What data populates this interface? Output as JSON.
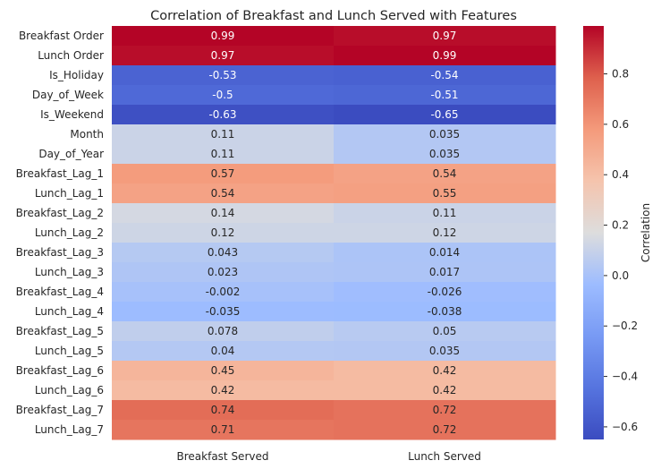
{
  "chart_data": {
    "type": "heatmap",
    "title": "Correlation of Breakfast and Lunch Served with Features",
    "columns": [
      "Breakfast Served",
      "Lunch Served"
    ],
    "rows": [
      "Breakfast Order",
      "Lunch Order",
      "Is_Holiday",
      "Day_of_Week",
      "Is_Weekend",
      "Month",
      "Day_of_Year",
      "Breakfast_Lag_1",
      "Lunch_Lag_1",
      "Breakfast_Lag_2",
      "Lunch_Lag_2",
      "Breakfast_Lag_3",
      "Lunch_Lag_3",
      "Breakfast_Lag_4",
      "Lunch_Lag_4",
      "Breakfast_Lag_5",
      "Lunch_Lag_5",
      "Breakfast_Lag_6",
      "Lunch_Lag_6",
      "Breakfast_Lag_7",
      "Lunch_Lag_7"
    ],
    "values": [
      [
        0.99,
        0.97
      ],
      [
        0.97,
        0.99
      ],
      [
        -0.53,
        -0.54
      ],
      [
        -0.5,
        -0.51
      ],
      [
        -0.63,
        -0.65
      ],
      [
        0.11,
        0.035
      ],
      [
        0.11,
        0.035
      ],
      [
        0.57,
        0.54
      ],
      [
        0.54,
        0.55
      ],
      [
        0.14,
        0.11
      ],
      [
        0.12,
        0.12
      ],
      [
        0.043,
        0.014
      ],
      [
        0.023,
        0.017
      ],
      [
        -0.002,
        -0.026
      ],
      [
        -0.035,
        -0.038
      ],
      [
        0.078,
        0.05
      ],
      [
        0.04,
        0.035
      ],
      [
        0.45,
        0.42
      ],
      [
        0.42,
        0.42
      ],
      [
        0.74,
        0.72
      ],
      [
        0.71,
        0.72
      ]
    ],
    "value_labels": [
      [
        "0.99",
        "0.97"
      ],
      [
        "0.97",
        "0.99"
      ],
      [
        "-0.53",
        "-0.54"
      ],
      [
        "-0.5",
        "-0.51"
      ],
      [
        "-0.63",
        "-0.65"
      ],
      [
        "0.11",
        "0.035"
      ],
      [
        "0.11",
        "0.035"
      ],
      [
        "0.57",
        "0.54"
      ],
      [
        "0.54",
        "0.55"
      ],
      [
        "0.14",
        "0.11"
      ],
      [
        "0.12",
        "0.12"
      ],
      [
        "0.043",
        "0.014"
      ],
      [
        "0.023",
        "0.017"
      ],
      [
        "-0.002",
        "-0.026"
      ],
      [
        "-0.035",
        "-0.038"
      ],
      [
        "0.078",
        "0.05"
      ],
      [
        "0.04",
        "0.035"
      ],
      [
        "0.45",
        "0.42"
      ],
      [
        "0.42",
        "0.42"
      ],
      [
        "0.74",
        "0.72"
      ],
      [
        "0.71",
        "0.72"
      ]
    ],
    "colormap": "coolwarm",
    "vmin": -0.65,
    "vmax": 0.99,
    "colorbar": {
      "label": "Correlation",
      "ticks": [
        0.8,
        0.6,
        0.4,
        0.2,
        0.0,
        -0.2,
        -0.4,
        -0.6
      ],
      "tick_labels": [
        "0.8",
        "0.6",
        "0.4",
        "0.2",
        "0.0",
        "−0.2",
        "−0.4",
        "−0.6"
      ]
    }
  }
}
